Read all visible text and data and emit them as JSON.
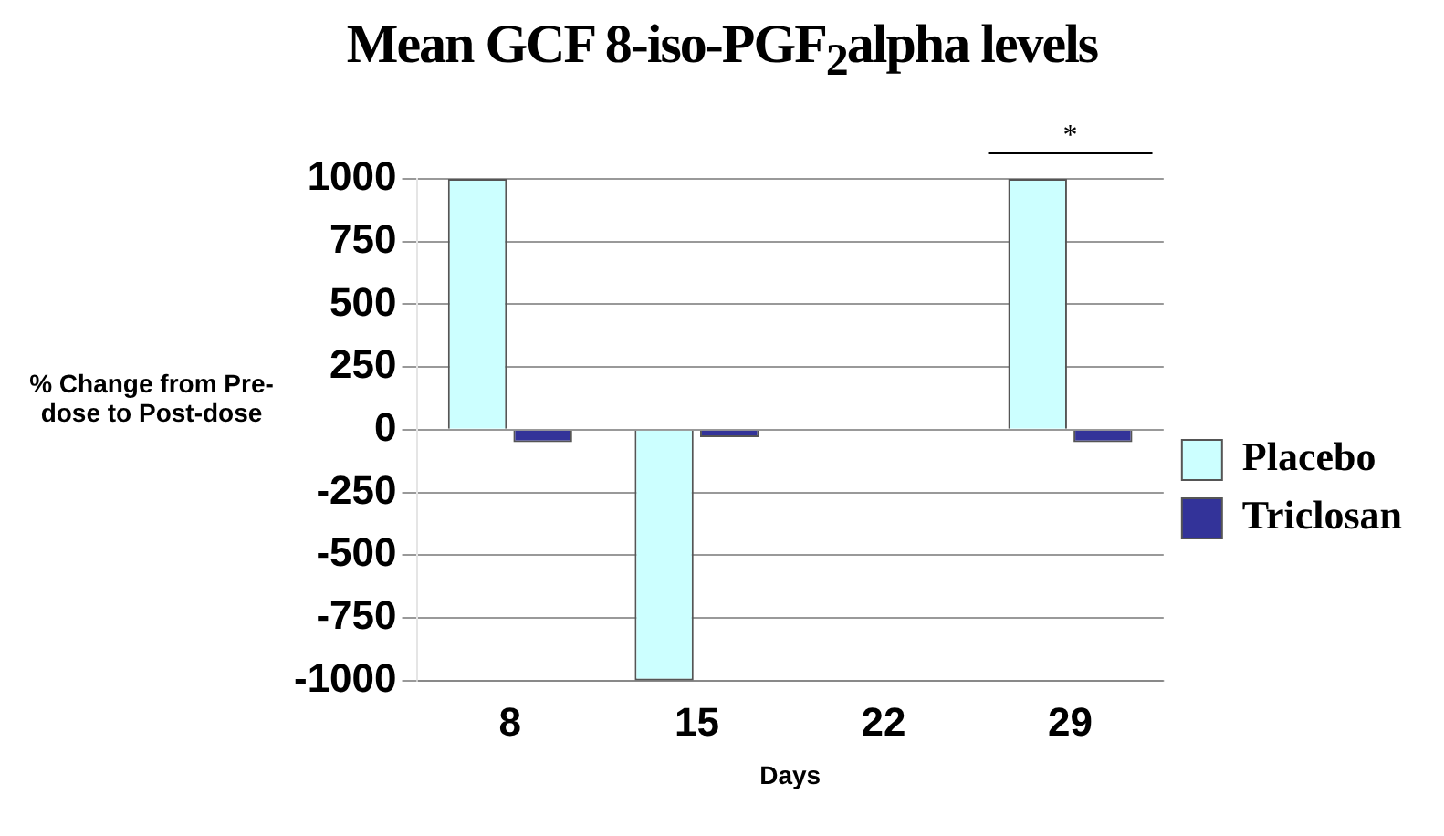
{
  "chart_data": {
    "type": "bar",
    "title": "Mean GCF 8-iso-PGF$_{2}$alpha levels",
    "xlabel": "Days",
    "ylabel": "% Change from Pre-dose to Post-dose",
    "categories": [
      "8",
      "15",
      "22",
      "29"
    ],
    "series": [
      {
        "name": "Placebo",
        "color": "#ccffff",
        "values": [
          1000,
          -1000,
          0,
          1000
        ]
      },
      {
        "name": "Triclosan",
        "color": "#333399",
        "values": [
          -50,
          -30,
          0,
          -50
        ]
      }
    ],
    "ylim": [
      -1000,
      1000
    ],
    "yticks": [
      -1000,
      -750,
      -500,
      -250,
      0,
      250,
      500,
      750,
      1000
    ],
    "grid": "y",
    "legend": "right",
    "annotations": [
      "*"
    ]
  }
}
